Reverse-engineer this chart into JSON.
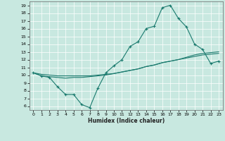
{
  "xlabel": "Humidex (Indice chaleur)",
  "bg_color": "#c8e8e0",
  "grid_color": "#ffffff",
  "line_color": "#1a7a6e",
  "xlim": [
    -0.5,
    23.5
  ],
  "ylim": [
    5.5,
    19.5
  ],
  "yticks": [
    6,
    7,
    8,
    9,
    10,
    11,
    12,
    13,
    14,
    15,
    16,
    17,
    18,
    19
  ],
  "xticks": [
    0,
    1,
    2,
    3,
    4,
    5,
    6,
    7,
    8,
    9,
    10,
    11,
    12,
    13,
    14,
    15,
    16,
    17,
    18,
    19,
    20,
    21,
    22,
    23
  ],
  "line1_x": [
    0,
    1,
    2,
    3,
    4,
    5,
    6,
    7,
    8,
    9,
    10,
    11,
    12,
    13,
    14,
    15,
    16,
    17,
    18,
    19,
    20,
    21,
    22,
    23
  ],
  "line1_y": [
    10.3,
    9.9,
    9.7,
    8.5,
    7.5,
    7.5,
    6.2,
    5.8,
    8.3,
    10.3,
    11.2,
    12.0,
    13.7,
    14.3,
    16.0,
    16.3,
    18.7,
    19.0,
    17.3,
    16.2,
    14.0,
    13.3,
    11.5,
    11.8
  ],
  "line2_x": [
    0,
    1,
    2,
    3,
    4,
    5,
    6,
    7,
    8,
    9,
    10,
    11,
    12,
    13,
    14,
    15,
    16,
    17,
    18,
    19,
    20,
    21,
    22,
    23
  ],
  "line2_y": [
    10.3,
    9.9,
    9.8,
    9.7,
    9.6,
    9.7,
    9.7,
    9.8,
    9.9,
    10.0,
    10.2,
    10.4,
    10.6,
    10.8,
    11.1,
    11.3,
    11.6,
    11.8,
    12.0,
    12.2,
    12.4,
    12.6,
    12.7,
    12.8
  ],
  "line3_x": [
    0,
    1,
    2,
    3,
    4,
    5,
    6,
    7,
    8,
    9,
    10,
    11,
    12,
    13,
    14,
    15,
    16,
    17,
    18,
    19,
    20,
    21,
    22,
    23
  ],
  "line3_y": [
    10.3,
    10.1,
    10.0,
    9.9,
    9.9,
    9.9,
    9.9,
    9.9,
    10.0,
    10.1,
    10.2,
    10.4,
    10.6,
    10.8,
    11.1,
    11.3,
    11.6,
    11.8,
    12.0,
    12.3,
    12.6,
    12.8,
    12.9,
    13.0
  ]
}
